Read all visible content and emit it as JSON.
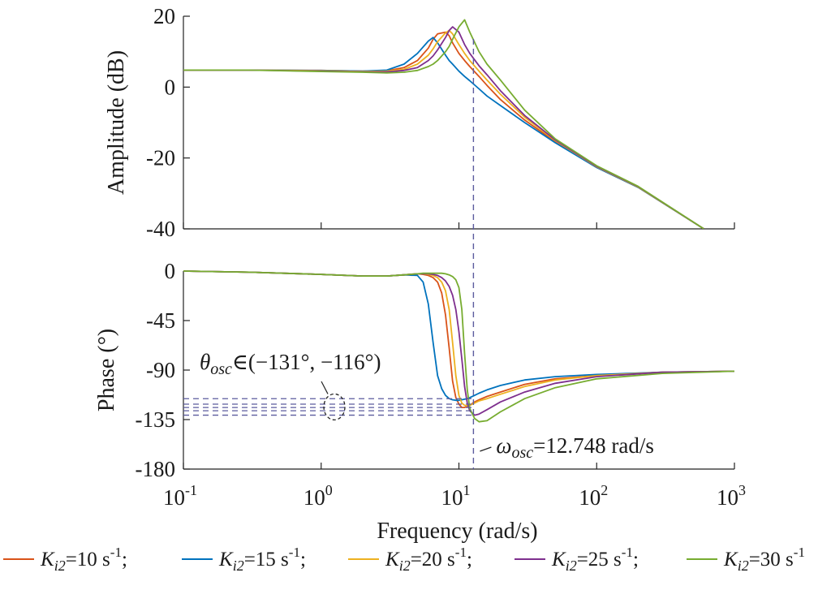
{
  "chart_data": [
    {
      "type": "line",
      "panel": "amplitude",
      "xlabel": "",
      "ylabel": "Amplitude (dB)",
      "xscale": "log",
      "xlim": [
        0.1,
        1000
      ],
      "ylim": [
        -40,
        20
      ],
      "yticks": [
        20,
        0,
        -20,
        -40
      ],
      "grid": false,
      "x": [
        0.1,
        0.3,
        1,
        2,
        3,
        4,
        5,
        6,
        6.5,
        7,
        8,
        8.5,
        9,
        10,
        11,
        12,
        14,
        16,
        20,
        30,
        50,
        100,
        200,
        600
      ],
      "series": [
        {
          "name": "Ki2=10 s-1",
          "color": "#d95319",
          "values": [
            4.8,
            4.8,
            4.7,
            4.5,
            4.6,
            5.5,
            7.5,
            11,
            13.5,
            15.0,
            15.5,
            14.5,
            12.5,
            9.5,
            7.5,
            5.8,
            3.0,
            0.5,
            -3.5,
            -9.3,
            -15.4,
            -22.6,
            -28.2,
            -40
          ]
        },
        {
          "name": "Ki2=15 s-1",
          "color": "#0072bd",
          "values": [
            4.8,
            4.8,
            4.7,
            4.5,
            4.8,
            6.5,
            9.5,
            13.0,
            14.0,
            12.5,
            9.0,
            7.5,
            6.5,
            4.5,
            3.0,
            1.8,
            -0.5,
            -2.5,
            -5.2,
            -10.0,
            -15.7,
            -22.7,
            -28.3,
            -40
          ]
        },
        {
          "name": "Ki2=20 s-1",
          "color": "#edb120",
          "values": [
            4.8,
            4.8,
            4.6,
            4.4,
            4.5,
            5.0,
            6.5,
            9.0,
            10.8,
            12.8,
            15.3,
            16.0,
            15.0,
            12.0,
            9.5,
            7.5,
            4.5,
            2.0,
            -2.0,
            -8.5,
            -15.1,
            -22.5,
            -28.2,
            -40
          ]
        },
        {
          "name": "Ki2=25 s-1",
          "color": "#7e2f8e",
          "values": [
            4.8,
            4.8,
            4.5,
            4.3,
            4.3,
            4.7,
            5.5,
            7.5,
            8.8,
            10.5,
            14.0,
            16.0,
            17.0,
            15.5,
            12.0,
            9.5,
            6.0,
            3.5,
            -1.0,
            -8.0,
            -14.9,
            -22.4,
            -28.1,
            -40
          ]
        },
        {
          "name": "Ki2=30 s-1",
          "color": "#77ac30",
          "values": [
            4.8,
            4.8,
            4.4,
            4.2,
            4.0,
            4.2,
            4.7,
            5.8,
            6.5,
            7.5,
            10.0,
            11.5,
            13.5,
            17.0,
            19.0,
            15.5,
            10.0,
            6.5,
            2.0,
            -6.5,
            -14.6,
            -22.2,
            -28.0,
            -40
          ]
        }
      ]
    },
    {
      "type": "line",
      "panel": "phase",
      "xlabel": "Frequency (rad/s)",
      "ylabel": "Phase (°)",
      "xscale": "log",
      "xlim": [
        0.1,
        1000
      ],
      "ylim": [
        -180,
        0
      ],
      "yticks": [
        0,
        -45,
        -90,
        -135,
        -180
      ],
      "xticks": [
        0.1,
        1,
        10,
        100,
        1000
      ],
      "xtick_labels": [
        [
          "10",
          "-1"
        ],
        [
          "10",
          "0"
        ],
        [
          "10",
          "1"
        ],
        [
          "10",
          "2"
        ],
        [
          "10",
          "3"
        ]
      ],
      "grid": false,
      "x": [
        0.1,
        0.3,
        1,
        2,
        3,
        4,
        5,
        5.5,
        6,
        6.5,
        7,
        7.5,
        8,
        8.5,
        9,
        9.5,
        10,
        10.5,
        11,
        11.5,
        12,
        13,
        14,
        16,
        20,
        30,
        50,
        100,
        300,
        1000
      ],
      "series": [
        {
          "name": "Ki2=10 s-1",
          "color": "#d95319",
          "values": [
            0,
            -1,
            -3,
            -4.5,
            -4.5,
            -3.5,
            -2.5,
            -3,
            -4,
            -6,
            -10,
            -20,
            -40,
            -70,
            -100,
            -115,
            -121,
            -124,
            -124,
            -123,
            -122,
            -119,
            -117,
            -114,
            -110,
            -103,
            -98,
            -95,
            -92,
            -91
          ]
        },
        {
          "name": "Ki2=15 s-1",
          "color": "#0072bd",
          "values": [
            0,
            -1,
            -3,
            -4.5,
            -4.5,
            -3.5,
            -4,
            -10,
            -30,
            -65,
            -95,
            -107,
            -113,
            -116,
            -117,
            -117.5,
            -117.5,
            -117,
            -116.5,
            -116,
            -115,
            -113,
            -111,
            -108,
            -104,
            -99,
            -96,
            -94,
            -92,
            -91
          ]
        },
        {
          "name": "Ki2=20 s-1",
          "color": "#edb120",
          "values": [
            0,
            -1,
            -3,
            -4.5,
            -4.5,
            -3.5,
            -2.5,
            -2.5,
            -3,
            -4,
            -6,
            -10,
            -18,
            -35,
            -65,
            -95,
            -113,
            -120,
            -122,
            -122.5,
            -122,
            -120,
            -118,
            -116,
            -112,
            -105,
            -99,
            -95,
            -92,
            -91
          ]
        },
        {
          "name": "Ki2=25 s-1",
          "color": "#7e2f8e",
          "values": [
            0,
            -1,
            -3,
            -4.5,
            -4.5,
            -3.5,
            -2.5,
            -2.5,
            -2.5,
            -3,
            -4,
            -6,
            -9,
            -14,
            -22,
            -35,
            -55,
            -80,
            -105,
            -120,
            -127,
            -131,
            -130,
            -126,
            -119,
            -110,
            -102,
            -96,
            -92,
            -91
          ]
        },
        {
          "name": "Ki2=30 s-1",
          "color": "#77ac30",
          "values": [
            0,
            -1,
            -3,
            -4.5,
            -4.5,
            -3.5,
            -2.5,
            -2,
            -2,
            -2,
            -2,
            -2,
            -2.5,
            -3.5,
            -5,
            -8,
            -15,
            -35,
            -75,
            -108,
            -125,
            -134,
            -137,
            -136,
            -128,
            -116,
            -106,
            -98,
            -93,
            -91
          ]
        }
      ]
    }
  ],
  "annotations": {
    "theta_symbol": "θ",
    "theta_sub": "osc",
    "theta_text": "∈(−131°, −116°)",
    "omega_symbol": "ω",
    "omega_sub": "osc",
    "omega_text": "=12.748 rad/s",
    "theta_levels": [
      -116,
      -121,
      -124,
      -127,
      -131
    ],
    "omega_x": 12.748,
    "marker_color": "#5b5b9e"
  },
  "legend": [
    {
      "prefix": "K",
      "sub": "i2",
      "text": "=10 s",
      "sup": "-1",
      "suffix": ";",
      "color": "#d95319"
    },
    {
      "prefix": "K",
      "sub": "i2",
      "text": "=15 s",
      "sup": "-1",
      "suffix": ";",
      "color": "#0072bd"
    },
    {
      "prefix": "K",
      "sub": "i2",
      "text": "=20 s",
      "sup": "-1",
      "suffix": ";",
      "color": "#edb120"
    },
    {
      "prefix": "K",
      "sub": "i2",
      "text": "=25 s",
      "sup": "-1",
      "suffix": ";",
      "color": "#7e2f8e"
    },
    {
      "prefix": "K",
      "sub": "i2",
      "text": "=30 s",
      "sup": "-1",
      "suffix": "",
      "color": "#77ac30"
    }
  ]
}
